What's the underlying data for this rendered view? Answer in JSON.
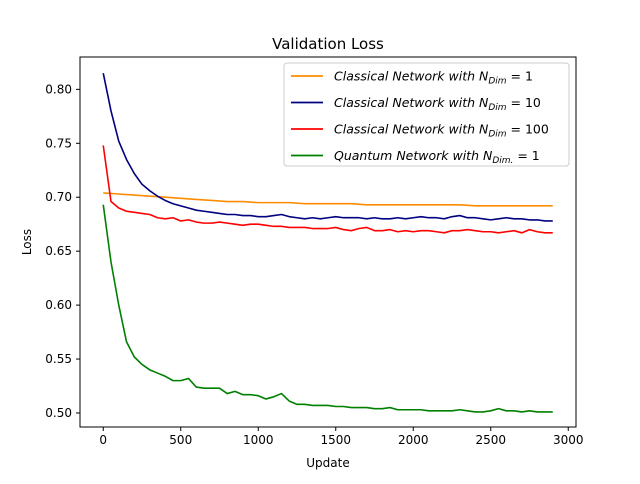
{
  "chart_data": {
    "type": "line",
    "title": "Validation Loss",
    "xlabel": "Update",
    "ylabel": "Loss",
    "xlim": [
      -150,
      3050
    ],
    "ylim": [
      0.487,
      0.83
    ],
    "xticks": [
      0,
      500,
      1000,
      1500,
      2000,
      2500,
      3000
    ],
    "xtick_labels": [
      "0",
      "500",
      "1000",
      "1500",
      "2000",
      "2500",
      "3000"
    ],
    "yticks": [
      0.5,
      0.55,
      0.6,
      0.65,
      0.7,
      0.75,
      0.8
    ],
    "ytick_labels": [
      "0.50",
      "0.55",
      "0.60",
      "0.65",
      "0.70",
      "0.75",
      "0.80"
    ],
    "grid": false,
    "legend_position": "top-right",
    "series": [
      {
        "name_main": "Classical Network with N",
        "name_sub": "Dim",
        "name_tail": " = 1",
        "color": "#ff8c00",
        "x": [
          0,
          100,
          200,
          300,
          400,
          500,
          600,
          700,
          800,
          900,
          1000,
          1100,
          1200,
          1300,
          1400,
          1500,
          1600,
          1700,
          1800,
          1900,
          2000,
          2100,
          2200,
          2300,
          2400,
          2500,
          2600,
          2700,
          2800,
          2900
        ],
        "values": [
          0.704,
          0.703,
          0.702,
          0.701,
          0.7,
          0.699,
          0.698,
          0.697,
          0.696,
          0.696,
          0.695,
          0.695,
          0.695,
          0.694,
          0.694,
          0.694,
          0.694,
          0.693,
          0.693,
          0.693,
          0.693,
          0.693,
          0.693,
          0.693,
          0.692,
          0.692,
          0.692,
          0.692,
          0.692,
          0.692
        ]
      },
      {
        "name_main": "Classical Network with N",
        "name_sub": "Dim",
        "name_tail": " = 10",
        "color": "#000080",
        "x": [
          0,
          50,
          100,
          150,
          200,
          250,
          300,
          350,
          400,
          450,
          500,
          550,
          600,
          650,
          700,
          750,
          800,
          850,
          900,
          950,
          1000,
          1050,
          1100,
          1150,
          1200,
          1250,
          1300,
          1350,
          1400,
          1450,
          1500,
          1550,
          1600,
          1650,
          1700,
          1750,
          1800,
          1850,
          1900,
          1950,
          2000,
          2050,
          2100,
          2150,
          2200,
          2250,
          2300,
          2350,
          2400,
          2450,
          2500,
          2550,
          2600,
          2650,
          2700,
          2750,
          2800,
          2850,
          2900
        ],
        "values": [
          0.815,
          0.78,
          0.752,
          0.735,
          0.722,
          0.712,
          0.706,
          0.701,
          0.697,
          0.694,
          0.692,
          0.69,
          0.688,
          0.687,
          0.686,
          0.685,
          0.684,
          0.684,
          0.683,
          0.683,
          0.682,
          0.682,
          0.683,
          0.684,
          0.682,
          0.681,
          0.68,
          0.681,
          0.68,
          0.681,
          0.682,
          0.681,
          0.681,
          0.681,
          0.68,
          0.681,
          0.68,
          0.68,
          0.681,
          0.68,
          0.681,
          0.682,
          0.681,
          0.681,
          0.68,
          0.682,
          0.683,
          0.681,
          0.681,
          0.68,
          0.679,
          0.68,
          0.681,
          0.68,
          0.68,
          0.679,
          0.679,
          0.678,
          0.678
        ]
      },
      {
        "name_main": "Classical Network with N",
        "name_sub": "Dim",
        "name_tail": " = 100",
        "color": "#ff0000",
        "x": [
          0,
          50,
          100,
          150,
          200,
          250,
          300,
          350,
          400,
          450,
          500,
          550,
          600,
          650,
          700,
          750,
          800,
          850,
          900,
          950,
          1000,
          1050,
          1100,
          1150,
          1200,
          1250,
          1300,
          1350,
          1400,
          1450,
          1500,
          1550,
          1600,
          1650,
          1700,
          1750,
          1800,
          1850,
          1900,
          1950,
          2000,
          2050,
          2100,
          2150,
          2200,
          2250,
          2300,
          2350,
          2400,
          2450,
          2500,
          2550,
          2600,
          2650,
          2700,
          2750,
          2800,
          2850,
          2900
        ],
        "values": [
          0.748,
          0.696,
          0.69,
          0.687,
          0.686,
          0.685,
          0.684,
          0.681,
          0.68,
          0.681,
          0.678,
          0.679,
          0.677,
          0.676,
          0.676,
          0.677,
          0.676,
          0.675,
          0.674,
          0.675,
          0.675,
          0.674,
          0.673,
          0.673,
          0.672,
          0.672,
          0.672,
          0.671,
          0.671,
          0.671,
          0.672,
          0.67,
          0.669,
          0.671,
          0.672,
          0.669,
          0.669,
          0.67,
          0.668,
          0.669,
          0.668,
          0.669,
          0.669,
          0.668,
          0.667,
          0.669,
          0.669,
          0.67,
          0.669,
          0.668,
          0.668,
          0.667,
          0.668,
          0.669,
          0.667,
          0.67,
          0.668,
          0.667,
          0.667
        ]
      },
      {
        "name_main": "Quantum Network with N",
        "name_sub": "Dim.",
        "name_tail": " = 1",
        "color": "#008000",
        "x": [
          0,
          50,
          100,
          150,
          200,
          250,
          300,
          350,
          400,
          450,
          500,
          550,
          600,
          650,
          700,
          750,
          800,
          850,
          900,
          950,
          1000,
          1050,
          1100,
          1150,
          1200,
          1250,
          1300,
          1350,
          1400,
          1450,
          1500,
          1550,
          1600,
          1650,
          1700,
          1750,
          1800,
          1850,
          1900,
          1950,
          2000,
          2050,
          2100,
          2150,
          2200,
          2250,
          2300,
          2350,
          2400,
          2450,
          2500,
          2550,
          2600,
          2650,
          2700,
          2750,
          2800,
          2850,
          2900
        ],
        "values": [
          0.693,
          0.64,
          0.6,
          0.566,
          0.552,
          0.545,
          0.54,
          0.537,
          0.534,
          0.53,
          0.53,
          0.532,
          0.524,
          0.523,
          0.523,
          0.523,
          0.518,
          0.52,
          0.517,
          0.517,
          0.516,
          0.513,
          0.515,
          0.518,
          0.511,
          0.508,
          0.508,
          0.507,
          0.507,
          0.507,
          0.506,
          0.506,
          0.505,
          0.505,
          0.505,
          0.504,
          0.504,
          0.505,
          0.503,
          0.503,
          0.503,
          0.503,
          0.502,
          0.502,
          0.502,
          0.502,
          0.503,
          0.502,
          0.501,
          0.501,
          0.502,
          0.504,
          0.502,
          0.502,
          0.501,
          0.502,
          0.501,
          0.501,
          0.501
        ]
      }
    ]
  }
}
